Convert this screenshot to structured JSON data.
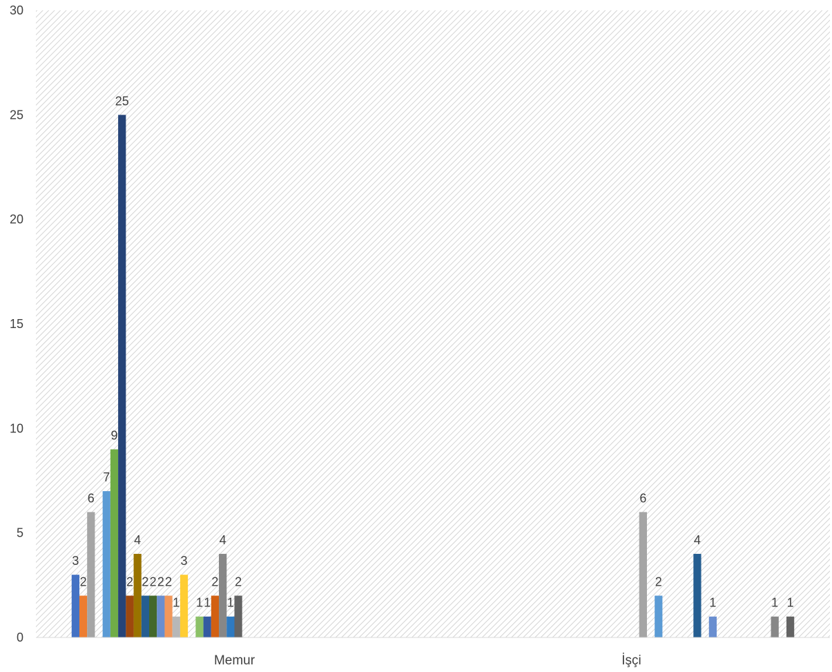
{
  "chart_data": {
    "type": "bar",
    "categories": [
      "Memur",
      "İşçi"
    ],
    "ylim": [
      0,
      30
    ],
    "y_ticks": [
      0,
      5,
      10,
      15,
      20,
      25,
      30
    ],
    "grid": false,
    "legend": "none",
    "series": [
      {
        "color": "#4472C4",
        "values": [
          3,
          null
        ]
      },
      {
        "color": "#ED7D31",
        "values": [
          2,
          null
        ]
      },
      {
        "color": "#A5A5A5",
        "values": [
          6,
          null
        ]
      },
      {
        "color": "#FFC000",
        "values": [
          null,
          null
        ]
      },
      {
        "color": "#5B9BD5",
        "values": [
          7,
          null
        ]
      },
      {
        "color": "#70AD47",
        "values": [
          9,
          null
        ]
      },
      {
        "color": "#264478",
        "values": [
          25,
          null
        ]
      },
      {
        "color": "#9E480E",
        "values": [
          2,
          null
        ]
      },
      {
        "color": "#997300",
        "values": [
          4,
          null
        ]
      },
      {
        "color": "#255E91",
        "values": [
          2,
          null
        ]
      },
      {
        "color": "#43682B",
        "values": [
          2,
          null
        ]
      },
      {
        "color": "#698ED0",
        "values": [
          2,
          null
        ]
      },
      {
        "color": "#F1975A",
        "values": [
          2,
          null
        ]
      },
      {
        "color": "#B7B7B7",
        "values": [
          1,
          null
        ]
      },
      {
        "color": "#FFCD33",
        "values": [
          3,
          null
        ]
      },
      {
        "color": "#7CAFDD",
        "values": [
          null,
          null
        ]
      },
      {
        "color": "#8CC168",
        "values": [
          1,
          null
        ]
      },
      {
        "color": "#335AA1",
        "values": [
          1,
          null
        ]
      },
      {
        "color": "#D26012",
        "values": [
          2,
          null
        ]
      },
      {
        "color": "#878787",
        "values": [
          4,
          null
        ]
      },
      {
        "color": "#2E7AC1",
        "values": [
          1,
          null
        ]
      },
      {
        "color": "#636363",
        "values": [
          2,
          null
        ]
      },
      {
        "color": "#A5A5A5",
        "values": [
          null,
          6
        ]
      },
      {
        "color": "#FFC000",
        "values": [
          null,
          null
        ]
      },
      {
        "color": "#5B9BD5",
        "values": [
          null,
          2
        ]
      },
      {
        "color": "#70AD47",
        "values": [
          null,
          null
        ]
      },
      {
        "color": "#264478",
        "values": [
          null,
          null
        ]
      },
      {
        "color": "#9E480E",
        "values": [
          null,
          null
        ]
      },
      {
        "color": "#997300",
        "values": [
          null,
          null
        ]
      },
      {
        "color": "#255E91",
        "values": [
          null,
          4
        ]
      },
      {
        "color": "#43682B",
        "values": [
          null,
          null
        ]
      },
      {
        "color": "#698ED0",
        "values": [
          null,
          1
        ]
      },
      {
        "color": "#F1975A",
        "values": [
          null,
          null
        ]
      },
      {
        "color": "#B7B7B7",
        "values": [
          null,
          null
        ]
      },
      {
        "color": "#FFCD33",
        "values": [
          null,
          null
        ]
      },
      {
        "color": "#7CAFDD",
        "values": [
          null,
          null
        ]
      },
      {
        "color": "#8CC168",
        "values": [
          null,
          null
        ]
      },
      {
        "color": "#335AA1",
        "values": [
          null,
          null
        ]
      },
      {
        "color": "#D26012",
        "values": [
          null,
          null
        ]
      },
      {
        "color": "#878787",
        "values": [
          null,
          1
        ]
      },
      {
        "color": "#2E7AC1",
        "values": [
          null,
          null
        ]
      },
      {
        "color": "#636363",
        "values": [
          null,
          1
        ]
      }
    ]
  }
}
